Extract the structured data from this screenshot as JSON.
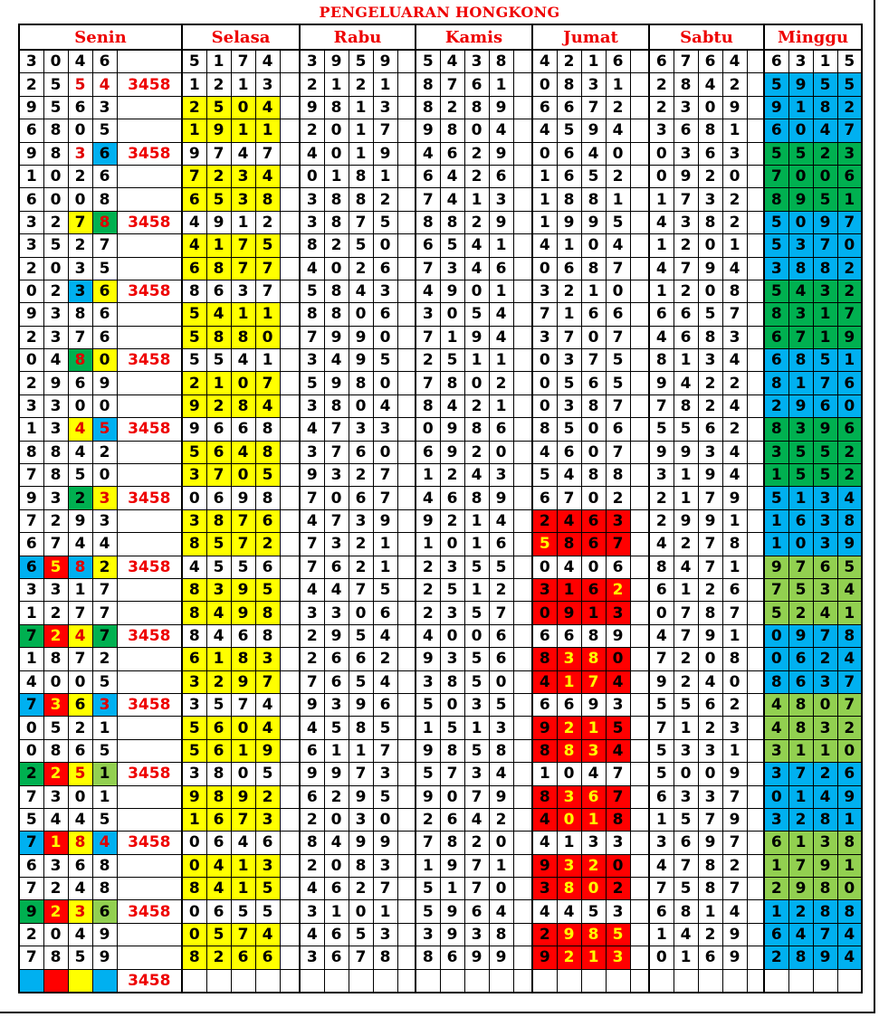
{
  "title": "PENGELUARAN HONGKONG",
  "days": [
    "Senin",
    "Selasa",
    "Rabu",
    "Kamis",
    "Jumat",
    "Sabtu",
    "Minggu"
  ],
  "colors": {
    "red_text": "#e00000",
    "yellow": "#ffff00",
    "blue": "#00b0f0",
    "green": "#00b050",
    "light_green": "#92d050",
    "red": "#ff0000"
  },
  "cell_styles": {
    ".": {
      "bg": "#ffffff",
      "fg": "#000000"
    },
    "r": {
      "bg": "#ffffff",
      "fg": "#e00000"
    },
    "y": {
      "bg": "#ffff00",
      "fg": "#000000"
    },
    "Y": {
      "bg": "#ffff00",
      "fg": "#e00000"
    },
    "b": {
      "bg": "#00b0f0",
      "fg": "#000000"
    },
    "B": {
      "bg": "#00b0f0",
      "fg": "#e00000"
    },
    "g": {
      "bg": "#00b050",
      "fg": "#000000"
    },
    "G": {
      "bg": "#00b050",
      "fg": "#e00000"
    },
    "l": {
      "bg": "#92d050",
      "fg": "#000000"
    },
    "R": {
      "bg": "#ff0000",
      "fg": "#000000"
    },
    "Q": {
      "bg": "#ff0000",
      "fg": "#ffff00"
    }
  },
  "rows": [
    {
      "d": [
        "3046",
        "5174",
        "3959",
        "5438",
        "4216",
        "6764",
        "6315"
      ],
      "m": "",
      "st": [
        "....",
        "....",
        "....",
        "....",
        "....",
        "....",
        "...."
      ]
    },
    {
      "d": [
        "2554",
        "1213",
        "2121",
        "8761",
        "0831",
        "2842",
        "5955"
      ],
      "m": "3458",
      "st": [
        "..rr",
        "....",
        "....",
        "....",
        "....",
        "....",
        "bbbb"
      ]
    },
    {
      "d": [
        "9563",
        "2504",
        "9813",
        "8289",
        "6672",
        "2309",
        "9182"
      ],
      "m": "",
      "st": [
        "....",
        "yyyy",
        "....",
        "....",
        "....",
        "....",
        "bbbb"
      ]
    },
    {
      "d": [
        "6805",
        "1911",
        "2017",
        "9804",
        "4594",
        "3681",
        "6047"
      ],
      "m": "",
      "st": [
        "....",
        "yyyy",
        "....",
        "....",
        "....",
        "....",
        "bbbb"
      ]
    },
    {
      "d": [
        "9836",
        "9747",
        "4019",
        "4629",
        "0640",
        "0363",
        "5523"
      ],
      "m": "3458",
      "st": [
        "..rb",
        "....",
        "....",
        "....",
        "....",
        "....",
        "gggg"
      ]
    },
    {
      "d": [
        "1026",
        "7234",
        "0181",
        "6426",
        "1652",
        "0920",
        "7006"
      ],
      "m": "",
      "st": [
        "....",
        "yyyy",
        "....",
        "....",
        "....",
        "....",
        "gggg"
      ]
    },
    {
      "d": [
        "6008",
        "6538",
        "3882",
        "7413",
        "1881",
        "1732",
        "8951"
      ],
      "m": "",
      "st": [
        "....",
        "yyyy",
        "....",
        "....",
        "....",
        "....",
        "gggg"
      ]
    },
    {
      "d": [
        "3278",
        "4912",
        "3875",
        "8829",
        "1995",
        "4382",
        "5097"
      ],
      "m": "3458",
      "st": [
        "..yG",
        "....",
        "....",
        "....",
        "....",
        "....",
        "bbbb"
      ]
    },
    {
      "d": [
        "3527",
        "4175",
        "8250",
        "6541",
        "4104",
        "1201",
        "5370"
      ],
      "m": "",
      "st": [
        "....",
        "yyyy",
        "....",
        "....",
        "....",
        "....",
        "bbbb"
      ]
    },
    {
      "d": [
        "2035",
        "6877",
        "4026",
        "7346",
        "0687",
        "4794",
        "3882"
      ],
      "m": "",
      "st": [
        "....",
        "yyyy",
        "....",
        "....",
        "....",
        "....",
        "bbbb"
      ]
    },
    {
      "d": [
        "0236",
        "8637",
        "5843",
        "4901",
        "3210",
        "1208",
        "5432"
      ],
      "m": "3458",
      "st": [
        "..by",
        "....",
        "....",
        "....",
        "....",
        "....",
        "gggg"
      ]
    },
    {
      "d": [
        "9386",
        "5411",
        "8806",
        "3054",
        "7166",
        "6657",
        "8317"
      ],
      "m": "",
      "st": [
        "....",
        "yyyy",
        "....",
        "....",
        "....",
        "....",
        "gggg"
      ]
    },
    {
      "d": [
        "2376",
        "5880",
        "7990",
        "7194",
        "3707",
        "4683",
        "6719"
      ],
      "m": "",
      "st": [
        "....",
        "yyyy",
        "....",
        "....",
        "....",
        "....",
        "gggg"
      ]
    },
    {
      "d": [
        "0480",
        "5541",
        "3495",
        "2511",
        "0375",
        "8134",
        "6851"
      ],
      "m": "3458",
      "st": [
        "..Gy",
        "....",
        "....",
        "....",
        "....",
        "....",
        "bbbb"
      ]
    },
    {
      "d": [
        "2969",
        "2107",
        "5980",
        "7802",
        "0565",
        "9422",
        "8176"
      ],
      "m": "",
      "st": [
        "....",
        "yyyy",
        "....",
        "....",
        "....",
        "....",
        "bbbb"
      ]
    },
    {
      "d": [
        "3300",
        "9284",
        "3804",
        "8421",
        "0387",
        "7824",
        "2960"
      ],
      "m": "",
      "st": [
        "....",
        "yyyy",
        "....",
        "....",
        "....",
        "....",
        "bbbb"
      ]
    },
    {
      "d": [
        "1345",
        "9668",
        "4733",
        "0986",
        "8506",
        "5562",
        "8396"
      ],
      "m": "3458",
      "st": [
        "..YB",
        "....",
        "....",
        "....",
        "....",
        "....",
        "gggg"
      ]
    },
    {
      "d": [
        "8842",
        "5648",
        "3760",
        "6920",
        "4607",
        "9934",
        "3552"
      ],
      "m": "",
      "st": [
        "....",
        "yyyy",
        "....",
        "....",
        "....",
        "....",
        "gggg"
      ]
    },
    {
      "d": [
        "7850",
        "3705",
        "9327",
        "1243",
        "5488",
        "3194",
        "1552"
      ],
      "m": "",
      "st": [
        "....",
        "yyyy",
        "....",
        "....",
        "....",
        "....",
        "gggg"
      ]
    },
    {
      "d": [
        "9323",
        "0698",
        "7067",
        "4689",
        "6702",
        "2179",
        "5134"
      ],
      "m": "3458",
      "st": [
        "..gY",
        "....",
        "....",
        "....",
        "....",
        "....",
        "bbbb"
      ]
    },
    {
      "d": [
        "7293",
        "3876",
        "4739",
        "9214",
        "2463",
        "2991",
        "1638"
      ],
      "m": "",
      "st": [
        "....",
        "yyyy",
        "....",
        "....",
        "RRRR",
        "....",
        "bbbb"
      ]
    },
    {
      "d": [
        "6744",
        "8572",
        "7321",
        "1016",
        "5867",
        "4278",
        "1039"
      ],
      "m": "",
      "st": [
        "....",
        "yyyy",
        "....",
        "....",
        "QRRR",
        "....",
        "bbbb"
      ]
    },
    {
      "d": [
        "6582",
        "4556",
        "7621",
        "2355",
        "0406",
        "8471",
        "9765"
      ],
      "m": "3458",
      "st": [
        "bQBy",
        "....",
        "....",
        "....",
        "....",
        "....",
        "llll"
      ]
    },
    {
      "d": [
        "3317",
        "8395",
        "4475",
        "2512",
        "3162",
        "6126",
        "7534"
      ],
      "m": "",
      "st": [
        "....",
        "yyyy",
        "....",
        "....",
        "RRRQ",
        "....",
        "llll"
      ]
    },
    {
      "d": [
        "1277",
        "8498",
        "3306",
        "2357",
        "0913",
        "0787",
        "5241"
      ],
      "m": "",
      "st": [
        "....",
        "yyyy",
        "....",
        "....",
        "RRRR",
        "....",
        "llll"
      ]
    },
    {
      "d": [
        "7247",
        "8468",
        "2954",
        "4006",
        "6689",
        "4791",
        "0978"
      ],
      "m": "3458",
      "st": [
        "gQYg",
        "....",
        "....",
        "....",
        "....",
        "....",
        "bbbb"
      ]
    },
    {
      "d": [
        "1872",
        "6183",
        "2662",
        "9356",
        "8380",
        "7208",
        "0624"
      ],
      "m": "",
      "st": [
        "....",
        "yyyy",
        "....",
        "....",
        "RQQR",
        "....",
        "bbbb"
      ]
    },
    {
      "d": [
        "4005",
        "3297",
        "7654",
        "3850",
        "4174",
        "9240",
        "8637"
      ],
      "m": "",
      "st": [
        "....",
        "yyyy",
        "....",
        "....",
        "RQQR",
        "....",
        "bbbb"
      ]
    },
    {
      "d": [
        "7363",
        "3574",
        "9396",
        "5035",
        "6693",
        "5562",
        "4807"
      ],
      "m": "3458",
      "st": [
        "bQyB",
        "....",
        "....",
        "....",
        "....",
        "....",
        "llll"
      ]
    },
    {
      "d": [
        "0521",
        "5604",
        "4585",
        "1513",
        "9215",
        "7123",
        "4832"
      ],
      "m": "",
      "st": [
        "....",
        "yyyy",
        "....",
        "....",
        "RQQR",
        "....",
        "llll"
      ]
    },
    {
      "d": [
        "0865",
        "5619",
        "6117",
        "9858",
        "8834",
        "5331",
        "3110"
      ],
      "m": "",
      "st": [
        "....",
        "yyyy",
        "....",
        "....",
        "RQQR",
        "....",
        "llll"
      ]
    },
    {
      "d": [
        "2251",
        "3805",
        "9973",
        "5734",
        "1047",
        "5009",
        "3726"
      ],
      "m": "3458",
      "st": [
        "gQYl",
        "....",
        "....",
        "....",
        "....",
        "....",
        "bbbb"
      ]
    },
    {
      "d": [
        "7301",
        "9892",
        "6295",
        "9079",
        "8367",
        "6337",
        "0149"
      ],
      "m": "",
      "st": [
        "....",
        "yyyy",
        "....",
        "....",
        "RQQR",
        "....",
        "bbbb"
      ]
    },
    {
      "d": [
        "5445",
        "1673",
        "2030",
        "2642",
        "4018",
        "1579",
        "3281"
      ],
      "m": "",
      "st": [
        "....",
        "yyyy",
        "....",
        "....",
        "RQQR",
        "....",
        "bbbb"
      ]
    },
    {
      "d": [
        "7184",
        "0646",
        "8499",
        "7820",
        "4133",
        "3697",
        "6138"
      ],
      "m": "3458",
      "st": [
        "bQYB",
        "....",
        "....",
        "....",
        "....",
        "....",
        "llll"
      ]
    },
    {
      "d": [
        "6368",
        "0413",
        "2083",
        "1971",
        "9320",
        "4782",
        "1791"
      ],
      "m": "",
      "st": [
        "....",
        "yyyy",
        "....",
        "....",
        "RQQR",
        "....",
        "llll"
      ]
    },
    {
      "d": [
        "7248",
        "8415",
        "4627",
        "5170",
        "3802",
        "7587",
        "2980"
      ],
      "m": "",
      "st": [
        "....",
        "yyyy",
        "....",
        "....",
        "RQQR",
        "....",
        "llll"
      ]
    },
    {
      "d": [
        "9236",
        "0655",
        "3101",
        "5964",
        "4453",
        "6814",
        "1288"
      ],
      "m": "3458",
      "st": [
        "gQYl",
        "....",
        "....",
        "....",
        "....",
        "....",
        "bbbb"
      ]
    },
    {
      "d": [
        "2049",
        "0574",
        "4653",
        "3938",
        "2985",
        "1429",
        "6474"
      ],
      "m": "",
      "st": [
        "....",
        "yyyy",
        "....",
        "....",
        "RQQQ",
        "....",
        "bbbb"
      ]
    },
    {
      "d": [
        "7859",
        "8266",
        "3678",
        "8699",
        "9213",
        "0169",
        "2894"
      ],
      "m": "",
      "st": [
        "....",
        "yyyy",
        "....",
        "....",
        "RQQQ",
        "....",
        "bbbb"
      ]
    },
    {
      "d": [
        "    ",
        "    ",
        "    ",
        "    ",
        "    ",
        "    ",
        "    "
      ],
      "m": "3458",
      "st": [
        "bRyb",
        "....",
        "....",
        "....",
        "....",
        "....",
        "...."
      ]
    }
  ]
}
